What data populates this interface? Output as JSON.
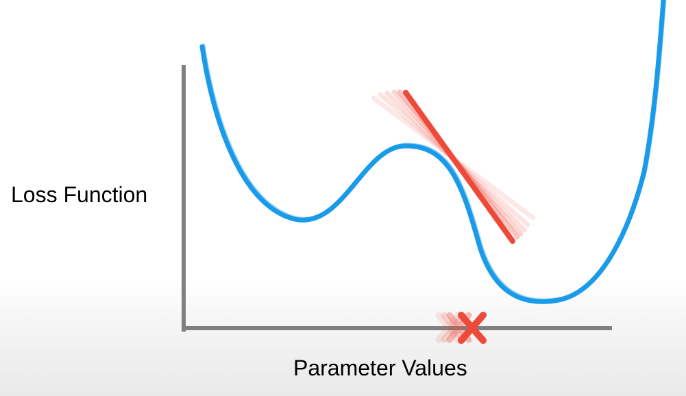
{
  "labels": {
    "y_axis": "Loss Function",
    "x_axis": "Parameter Values"
  },
  "colors": {
    "curve": "#1a9bea",
    "tangent": "#ee4a3a",
    "axes": "#808080",
    "text": "#000000",
    "marker": "#ee4a3a"
  },
  "icons": {
    "marker": "x-marker-icon"
  }
}
